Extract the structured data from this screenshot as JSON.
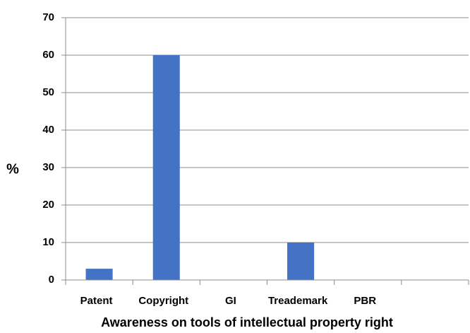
{
  "chart_data": {
    "type": "bar",
    "x_label": "Awareness on tools of intellectual property right",
    "y_label": "%",
    "categories": [
      "Patent",
      "Copyright",
      "GI",
      "Treademark",
      "PBR",
      null
    ],
    "values": [
      3,
      60,
      0,
      10,
      0,
      0
    ],
    "color": "#4472c4",
    "ylim": [
      0,
      70
    ],
    "yticks": [
      0,
      10,
      20,
      30,
      40,
      50,
      60,
      70
    ],
    "grid": true
  }
}
